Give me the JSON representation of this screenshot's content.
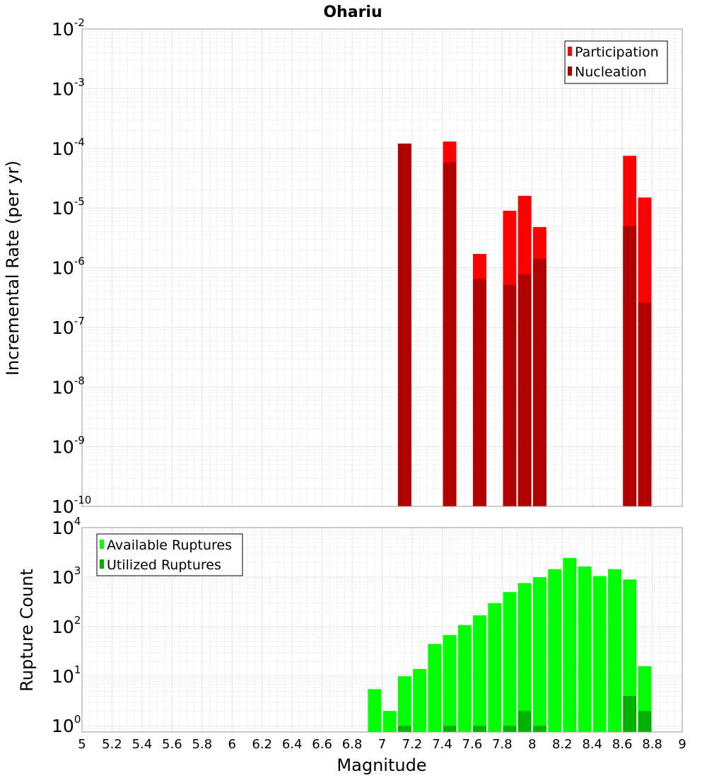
{
  "chart_data": [
    {
      "type": "bar",
      "title": "Ohariu",
      "ylabel": "Incremental Rate (per yr)",
      "xlabel": "",
      "xlim": [
        5,
        9
      ],
      "ylim": [
        1e-10,
        0.01
      ],
      "yscale": "log",
      "grid": true,
      "legend_position": "top-right",
      "bar_width": 0.1,
      "y_ticks": [
        {
          "base": "10",
          "exp": "-2"
        },
        {
          "base": "10",
          "exp": "-3"
        },
        {
          "base": "10",
          "exp": "-4"
        },
        {
          "base": "10",
          "exp": "-5"
        },
        {
          "base": "10",
          "exp": "-6"
        },
        {
          "base": "10",
          "exp": "-7"
        },
        {
          "base": "10",
          "exp": "-8"
        },
        {
          "base": "10",
          "exp": "-9"
        },
        {
          "base": "10",
          "exp": "-10"
        }
      ],
      "legend": [
        {
          "label": "Participation",
          "color": "#ff0000"
        },
        {
          "label": "Nucleation",
          "color": "#b20000"
        }
      ],
      "series": [
        {
          "name": "Participation",
          "color": "#ff0000",
          "x": [
            7.15,
            7.45,
            7.65,
            7.85,
            7.95,
            8.05,
            8.65,
            8.75
          ],
          "values": [
            0.00012,
            0.00013,
            1.7e-06,
            9e-06,
            1.6e-05,
            4.8e-06,
            7.5e-05,
            1.5e-05
          ]
        },
        {
          "name": "Nucleation",
          "color": "#b20000",
          "x": [
            7.15,
            7.45,
            7.65,
            7.85,
            7.95,
            8.05,
            8.65,
            8.75
          ],
          "values": [
            0.00012,
            5.8e-05,
            6.5e-07,
            5.2e-07,
            7.7e-07,
            1.4e-06,
            5e-06,
            2.6e-07
          ]
        }
      ]
    },
    {
      "type": "bar",
      "ylabel": "Rupture Count",
      "xlabel": "Magnitude",
      "xlim": [
        5,
        9
      ],
      "ylim": [
        0.75,
        10000.0
      ],
      "yscale": "log",
      "grid": true,
      "legend_position": "top-left",
      "bar_width": 0.1,
      "x_ticks": [
        "5",
        "5.2",
        "5.4",
        "5.6",
        "5.8",
        "6",
        "6.2",
        "6.4",
        "6.6",
        "6.8",
        "7",
        "7.2",
        "7.4",
        "7.6",
        "7.8",
        "8",
        "8.2",
        "8.4",
        "8.6",
        "8.8",
        "9"
      ],
      "y_ticks": [
        {
          "base": "10",
          "exp": "4"
        },
        {
          "base": "10",
          "exp": "3"
        },
        {
          "base": "10",
          "exp": "2"
        },
        {
          "base": "10",
          "exp": "1"
        },
        {
          "base": "10",
          "exp": "0"
        }
      ],
      "legend": [
        {
          "label": "Available Ruptures",
          "color": "#00ff00"
        },
        {
          "label": "Utilized Ruptures",
          "color": "#00b200"
        }
      ],
      "series": [
        {
          "name": "Available Ruptures",
          "color": "#00ff00",
          "x": [
            6.95,
            7.05,
            7.15,
            7.25,
            7.35,
            7.45,
            7.55,
            7.65,
            7.75,
            7.85,
            7.95,
            8.05,
            8.15,
            8.25,
            8.35,
            8.45,
            8.55,
            8.65,
            8.75
          ],
          "values": [
            5.5,
            2,
            10,
            14,
            45,
            68,
            108,
            170,
            300,
            500,
            760,
            1000,
            1450,
            2450,
            1650,
            1050,
            1450,
            900,
            16
          ]
        },
        {
          "name": "Utilized Ruptures",
          "color": "#00b200",
          "x": [
            7.15,
            7.45,
            7.65,
            7.85,
            7.95,
            8.05,
            8.65,
            8.75
          ],
          "values": [
            1,
            1,
            1,
            1,
            2,
            1,
            4,
            2
          ]
        }
      ]
    }
  ]
}
